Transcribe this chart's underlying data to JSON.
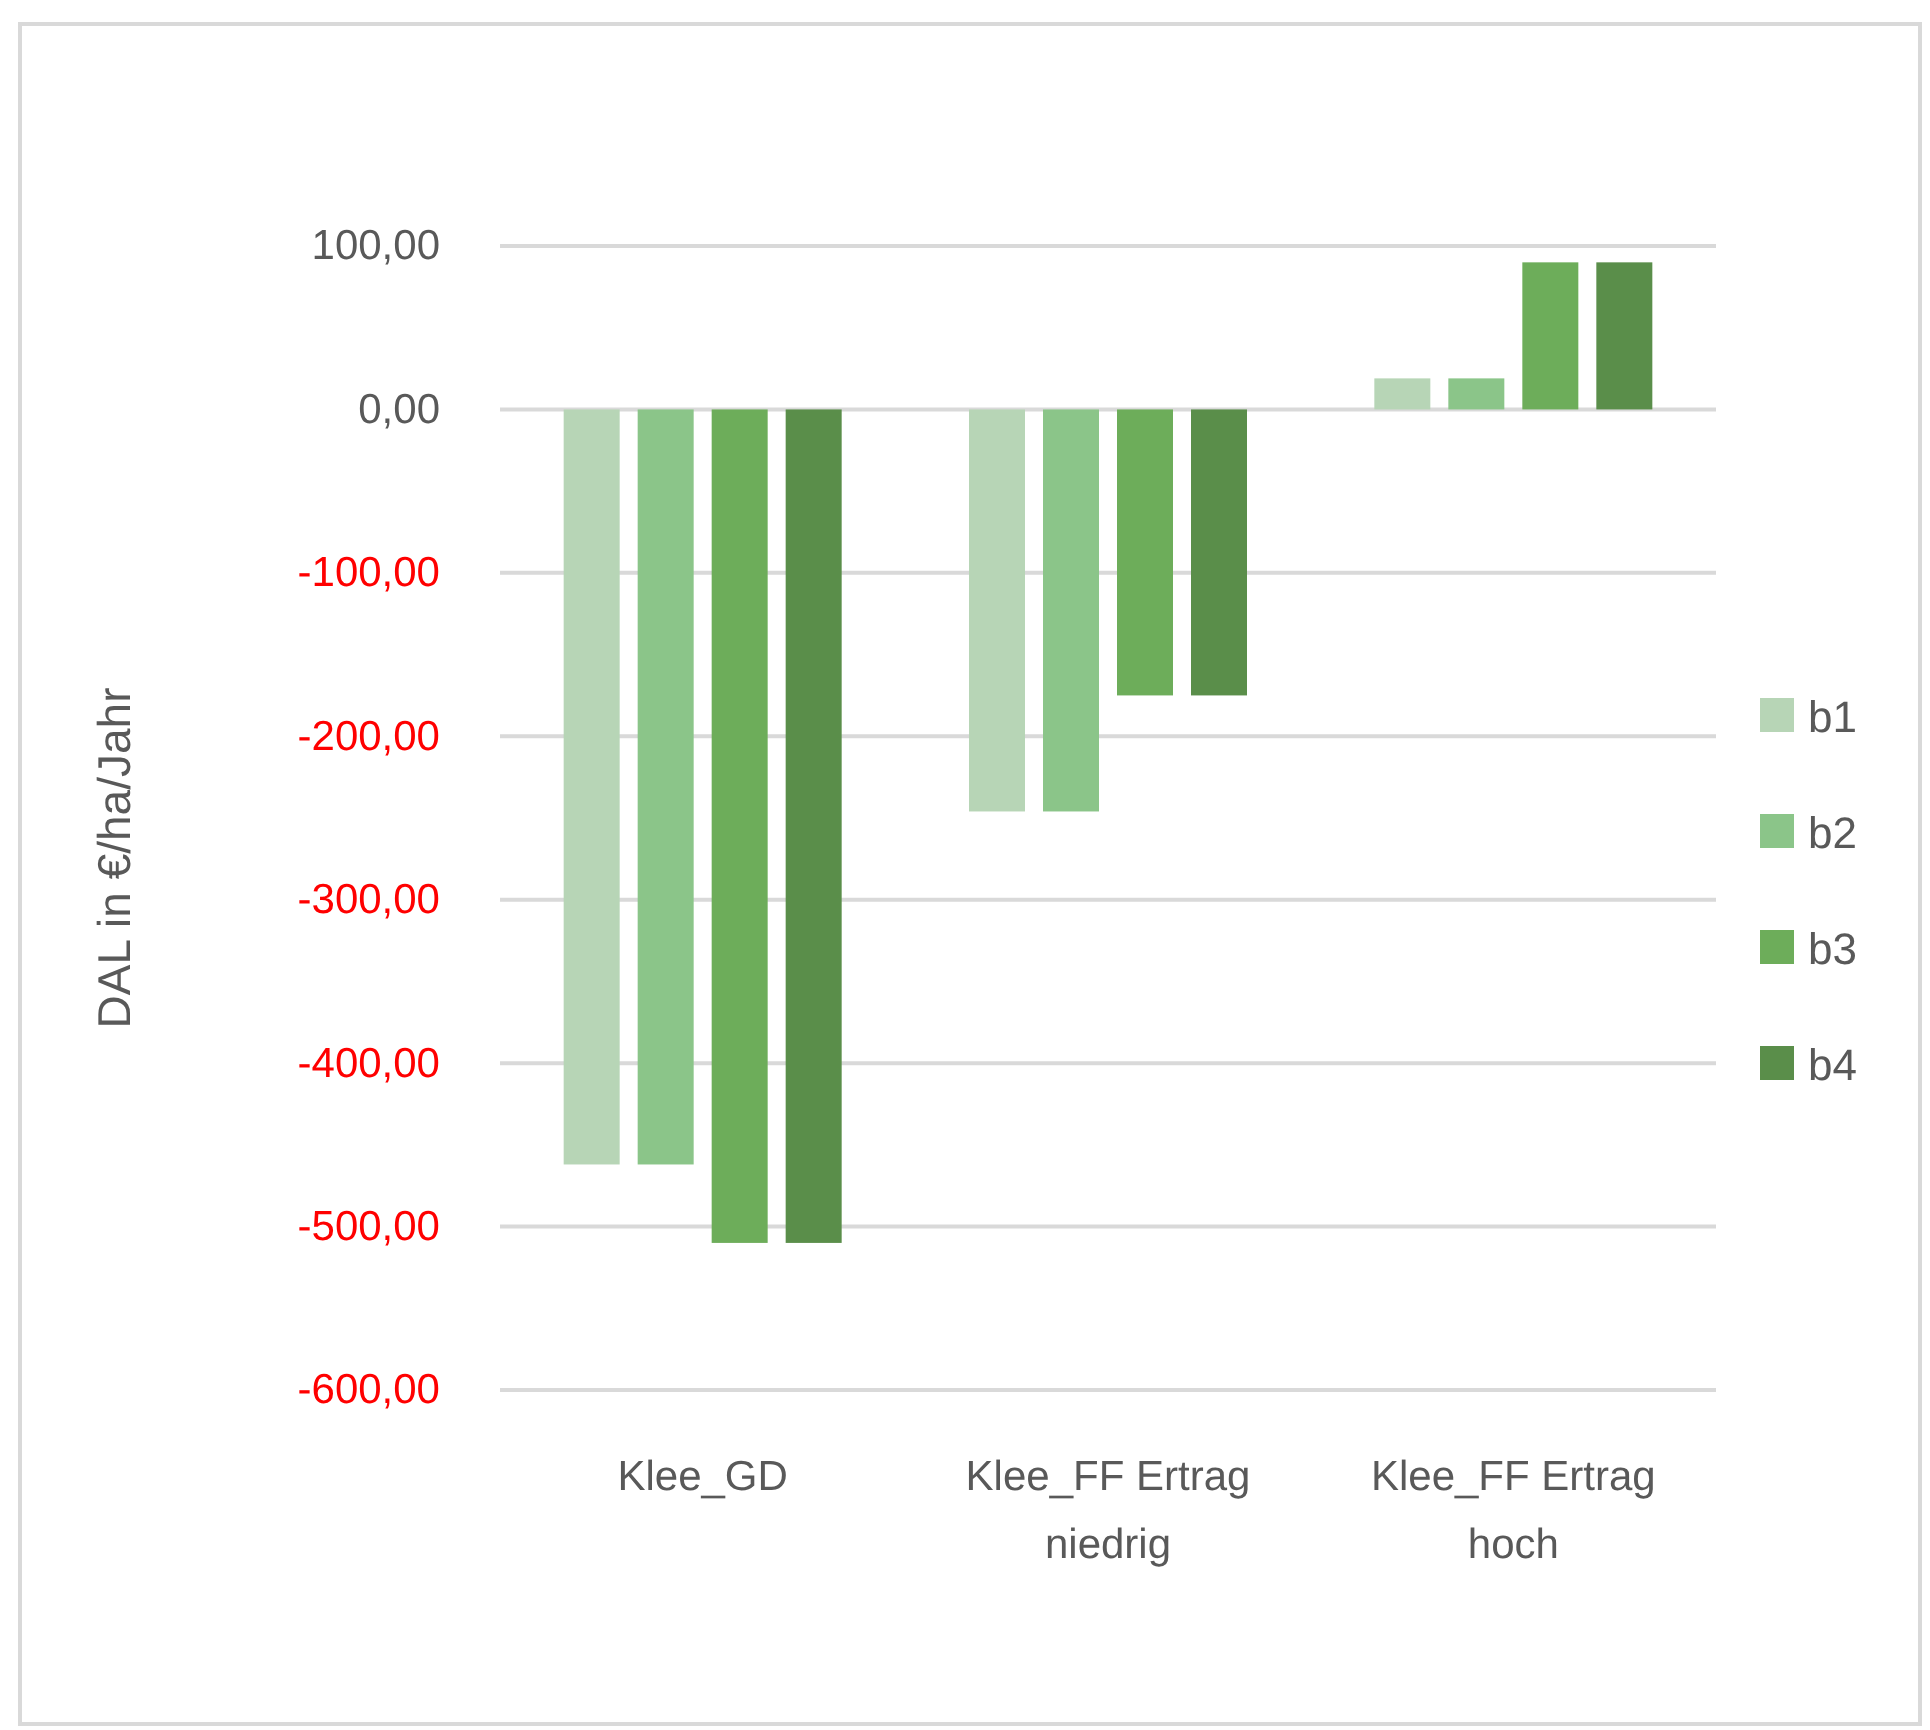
{
  "chart_data": {
    "type": "bar",
    "ylabel": "DAL in €/ha/Jahr",
    "categories": [
      "Klee_GD",
      "Klee_FF Ertrag niedrig",
      "Klee_FF Ertrag hoch"
    ],
    "series": [
      {
        "name": "b1",
        "color": "#b7d5b6",
        "values": [
          -462,
          -246,
          19
        ]
      },
      {
        "name": "b2",
        "color": "#8bc589",
        "values": [
          -462,
          -246,
          19
        ]
      },
      {
        "name": "b3",
        "color": "#6dad5a",
        "values": [
          -510,
          -175,
          90
        ]
      },
      {
        "name": "b4",
        "color": "#5a8e4a",
        "values": [
          -510,
          -175,
          90
        ]
      }
    ],
    "ylim": [
      -600,
      100
    ],
    "yticks": [
      {
        "value": 100,
        "label": "100,00"
      },
      {
        "value": 0,
        "label": "0,00"
      },
      {
        "value": -100,
        "label": "-100,00"
      },
      {
        "value": -200,
        "label": "-200,00"
      },
      {
        "value": -300,
        "label": "-300,00"
      },
      {
        "value": -400,
        "label": "-400,00"
      },
      {
        "value": -500,
        "label": "-500,00"
      },
      {
        "value": -600,
        "label": "-600,00"
      }
    ],
    "grid": "y",
    "legend": "right"
  }
}
